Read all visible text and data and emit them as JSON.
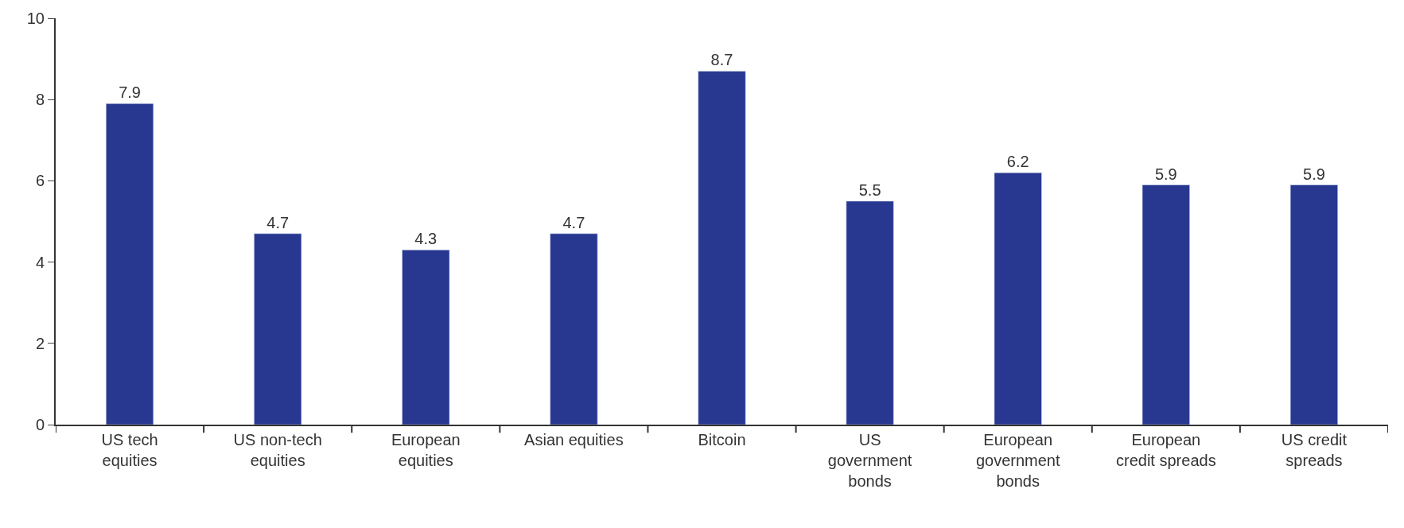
{
  "chart_data": {
    "type": "bar",
    "categories": [
      "US tech\nequities",
      "US non-tech\nequities",
      "European\nequities",
      "Asian equities",
      "Bitcoin",
      "US\ngovernment\nbonds",
      "European\ngovernment\nbonds",
      "European\ncredit spreads",
      "US credit\nspreads"
    ],
    "values": [
      7.9,
      4.7,
      4.3,
      4.7,
      8.7,
      5.5,
      6.2,
      5.9,
      5.9
    ],
    "color": "#283891",
    "ylim": [
      0,
      10
    ],
    "yticks": [
      0,
      2,
      4,
      6,
      8,
      10
    ],
    "data_labels": true
  }
}
